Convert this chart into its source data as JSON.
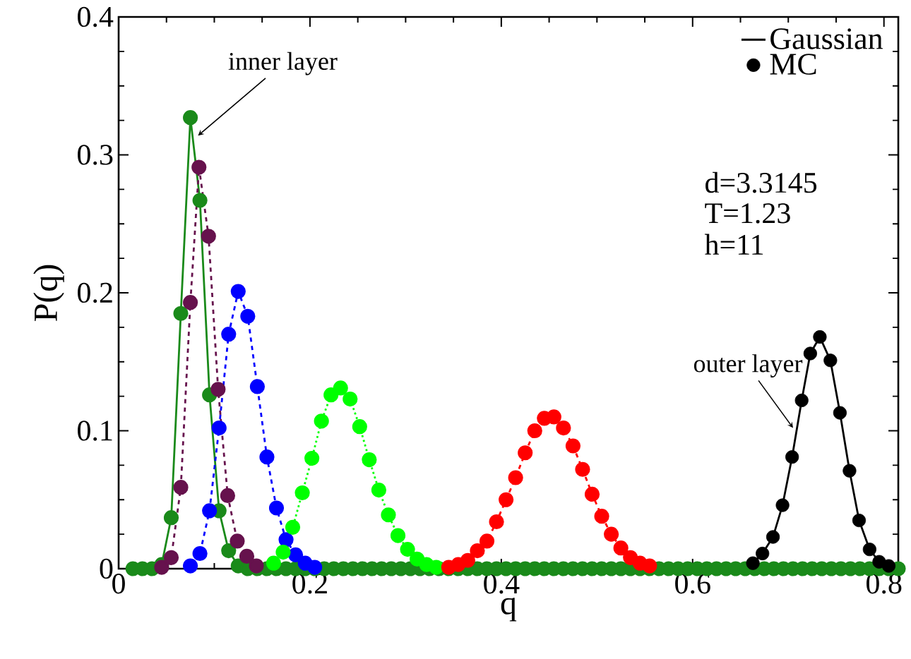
{
  "chart_data": {
    "type": "line",
    "xlabel": "q",
    "ylabel": "P(q)",
    "xlim": [
      0,
      0.815
    ],
    "xticks": [
      0,
      0.2,
      0.4,
      0.6,
      0.8
    ],
    "ylim": [
      0,
      0.4
    ],
    "yticks": [
      0,
      0.1,
      0.2,
      0.3,
      0.4
    ],
    "marker": "circle",
    "legend": "top right",
    "series": [
      {
        "color": "#1a8a1a",
        "line_style": "solid",
        "x": [
          0.015,
          0.025,
          0.035,
          0.045,
          0.055,
          0.065,
          0.075,
          0.085,
          0.095,
          0.105,
          0.115,
          0.125,
          0.135,
          0.145,
          0.155,
          0.165,
          0.175,
          0.185,
          0.195,
          0.205,
          0.215,
          0.225,
          0.235,
          0.245,
          0.255,
          0.265,
          0.275,
          0.285,
          0.295,
          0.305,
          0.315,
          0.325,
          0.335,
          0.345,
          0.355,
          0.365,
          0.375,
          0.385,
          0.395,
          0.405,
          0.415,
          0.425,
          0.435,
          0.445,
          0.455,
          0.465,
          0.475,
          0.485,
          0.495,
          0.505,
          0.515,
          0.525,
          0.535,
          0.545,
          0.555,
          0.565,
          0.575,
          0.585,
          0.595,
          0.605,
          0.615,
          0.625,
          0.635,
          0.645,
          0.655,
          0.665,
          0.675,
          0.685,
          0.695,
          0.705,
          0.715,
          0.725,
          0.735,
          0.745,
          0.755,
          0.765,
          0.775,
          0.785,
          0.795,
          0.805,
          0.815
        ],
        "values": [
          0,
          0,
          0,
          0.003,
          0.037,
          0.185,
          0.327,
          0.267,
          0.126,
          0.042,
          0.013,
          0.002,
          0,
          0,
          0,
          0,
          0,
          0,
          0,
          0,
          0,
          0,
          0,
          0,
          0,
          0,
          0,
          0,
          0,
          0,
          0,
          0,
          0,
          0,
          0,
          0,
          0,
          0,
          0,
          0,
          0,
          0,
          0,
          0,
          0,
          0,
          0,
          0,
          0,
          0,
          0,
          0,
          0,
          0,
          0,
          0,
          0,
          0,
          0,
          0,
          0,
          0,
          0,
          0,
          0,
          0,
          0,
          0,
          0,
          0,
          0,
          0,
          0,
          0,
          0,
          0,
          0,
          0,
          0,
          0,
          0
        ]
      },
      {
        "color": "#66124d",
        "line_style": "dashed",
        "x": [
          0.045,
          0.055,
          0.065,
          0.075,
          0.084,
          0.094,
          0.104,
          0.114,
          0.124,
          0.134,
          0.144
        ],
        "values": [
          0.001,
          0.008,
          0.059,
          0.193,
          0.291,
          0.241,
          0.13,
          0.053,
          0.02,
          0.009,
          0.002
        ]
      },
      {
        "color": "#0000ff",
        "line_style": "dashed",
        "x": [
          0.075,
          0.085,
          0.095,
          0.105,
          0.115,
          0.125,
          0.135,
          0.145,
          0.155,
          0.165,
          0.175,
          0.185,
          0.195,
          0.205
        ],
        "values": [
          0.002,
          0.011,
          0.042,
          0.102,
          0.17,
          0.201,
          0.183,
          0.132,
          0.081,
          0.044,
          0.021,
          0.01,
          0.004,
          0.001
        ]
      },
      {
        "color": "#00ff00",
        "line_style": "dotted",
        "x": [
          0.162,
          0.172,
          0.182,
          0.192,
          0.202,
          0.212,
          0.222,
          0.232,
          0.242,
          0.252,
          0.262,
          0.272,
          0.282,
          0.292,
          0.302,
          0.312,
          0.322,
          0.332
        ],
        "values": [
          0.004,
          0.012,
          0.03,
          0.055,
          0.08,
          0.107,
          0.126,
          0.131,
          0.123,
          0.103,
          0.079,
          0.057,
          0.039,
          0.024,
          0.014,
          0.007,
          0.003,
          0.001
        ]
      },
      {
        "color": "#ff0000",
        "line_style": "dashed",
        "x": [
          0.345,
          0.355,
          0.365,
          0.375,
          0.385,
          0.395,
          0.405,
          0.415,
          0.425,
          0.435,
          0.445,
          0.455,
          0.465,
          0.475,
          0.485,
          0.495,
          0.505,
          0.515,
          0.525,
          0.535,
          0.545,
          0.555
        ],
        "values": [
          0.001,
          0.003,
          0.006,
          0.013,
          0.02,
          0.034,
          0.05,
          0.066,
          0.084,
          0.1,
          0.109,
          0.11,
          0.102,
          0.089,
          0.072,
          0.054,
          0.038,
          0.025,
          0.015,
          0.008,
          0.004,
          0.002
        ]
      },
      {
        "name": "Gaussian",
        "type": "line",
        "marker": "none",
        "color": "#000000",
        "line_style": "solid",
        "x": [
          0.663,
          0.673,
          0.684,
          0.694,
          0.704,
          0.714,
          0.723,
          0.733,
          0.744,
          0.754,
          0.764,
          0.774,
          0.785,
          0.795,
          0.805
        ],
        "values": [
          0.004,
          0.011,
          0.023,
          0.046,
          0.081,
          0.122,
          0.156,
          0.168,
          0.151,
          0.113,
          0.071,
          0.035,
          0.014,
          0.005,
          0.002
        ]
      },
      {
        "name": "MC",
        "type": "scatter",
        "marker": "circle",
        "color": "#000000",
        "x": [
          0.663,
          0.673,
          0.684,
          0.694,
          0.704,
          0.714,
          0.723,
          0.733,
          0.744,
          0.754,
          0.764,
          0.774,
          0.785,
          0.795,
          0.805
        ],
        "values": [
          0.004,
          0.011,
          0.023,
          0.046,
          0.081,
          0.122,
          0.156,
          0.168,
          0.151,
          0.113,
          0.071,
          0.035,
          0.014,
          0.005,
          0.002
        ]
      }
    ],
    "annotations": [
      "d=3.3145",
      "T=1.23",
      "h=11",
      {
        "text": "inner layer",
        "x": 0.083,
        "y": 0.314
      },
      {
        "text": "outer layer",
        "x": 0.705,
        "y": 0.102
      }
    ]
  }
}
